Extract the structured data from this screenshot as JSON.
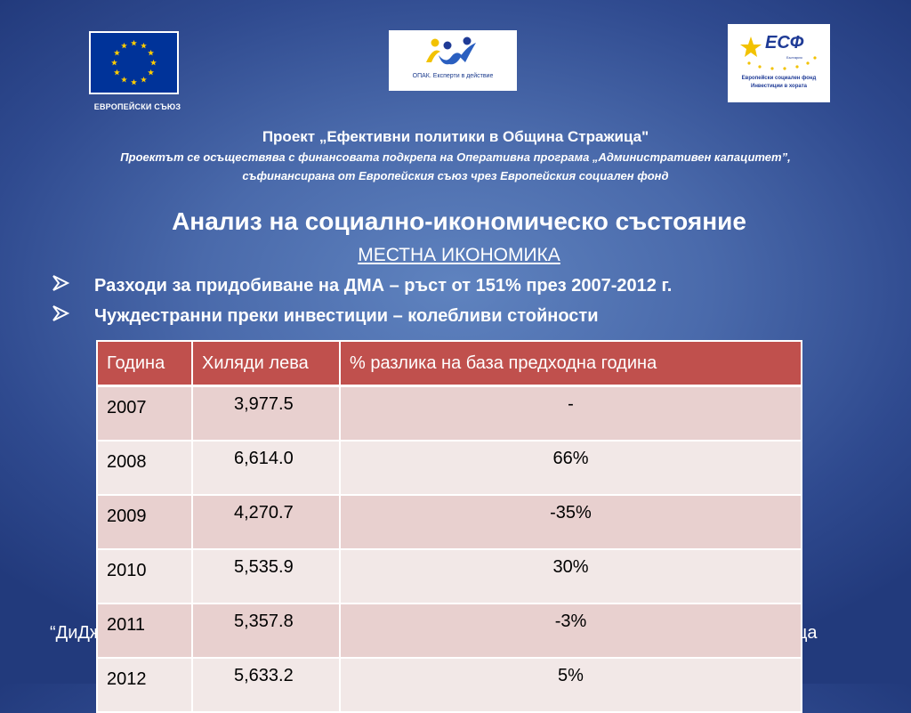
{
  "logos": {
    "eu_caption": "ЕВРОПЕЙСКИ СЪЮЗ",
    "opak_caption": "ОПАК. Експерти в действие",
    "esf_title": "ЕСФ",
    "esf_sub": "България",
    "esf_line1": "Европейски социален фонд",
    "esf_line2": "Инвестиции в хората"
  },
  "project": {
    "title": "Проект „Ефективни политики в Община Стражица\"",
    "line1": "Проектът се осъществява с финансовата подкрепа на Оперативна програма „Административен капацитет”,",
    "line2": "съфинансирана от Европейския съюз чрез Европейския социален фонд"
  },
  "heading": "Анализ на социално-икономическо състояние",
  "subheading": "МЕСТНА ИКОНОМИКА",
  "bullets": [
    "Разходи за придобиване на ДМА – ръст от 151% през 2007-2012 г.",
    "Чуждестранни преки инвестиции – колебливи стойности"
  ],
  "table": {
    "headers": [
      "Година",
      "Хиляди лева",
      "% разлика на база предходна година"
    ],
    "rows": [
      [
        "2007",
        "3,977.5",
        "-"
      ],
      [
        "2008",
        "6,614.0",
        "66%"
      ],
      [
        "2009",
        "4,270.7",
        "-35%"
      ],
      [
        "2010",
        "5,535.9",
        "30%"
      ],
      [
        "2011",
        "5,357.8",
        "-3%"
      ],
      [
        "2012",
        "5,633.2",
        "5%"
      ]
    ]
  },
  "footer": {
    "left": "“ДиДж",
    "right": "тражица"
  },
  "colors": {
    "header_red": "#c0504d",
    "row_dark": "#e8d0cf",
    "row_light": "#f2e8e7",
    "eu_blue": "#003399",
    "star_yellow": "#ffcc00"
  }
}
